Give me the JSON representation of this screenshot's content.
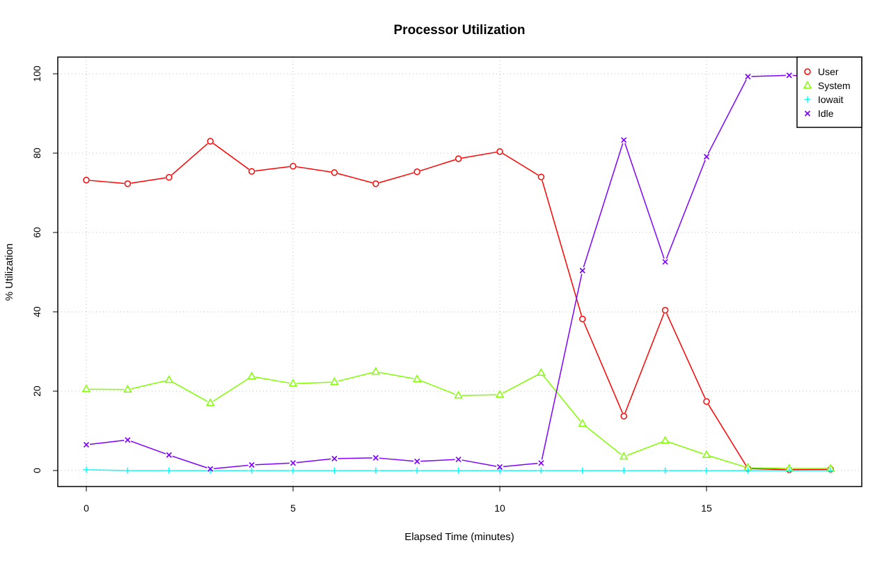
{
  "chart_data": {
    "type": "line",
    "title": "Processor Utilization",
    "xlabel": "Elapsed Time (minutes)",
    "ylabel": "% Utilization",
    "x": [
      0,
      1,
      2,
      3,
      4,
      5,
      6,
      7,
      8,
      9,
      10,
      11,
      12,
      13,
      14,
      15,
      16,
      17,
      18
    ],
    "xlim": [
      -0.7,
      18.7
    ],
    "ylim": [
      -4,
      104
    ],
    "xticks": [
      0,
      5,
      10,
      15
    ],
    "yticks": [
      0,
      20,
      40,
      60,
      80,
      100
    ],
    "grid": true,
    "legend_position": "top-right",
    "series": [
      {
        "name": "User",
        "color": "#ff0000",
        "marker": "circle",
        "values": [
          73.2,
          72.3,
          73.9,
          83.0,
          75.4,
          76.7,
          75.1,
          72.3,
          75.3,
          78.6,
          80.4,
          74.0,
          38.2,
          13.7,
          40.4,
          17.4,
          0.5,
          0.2,
          0.3
        ]
      },
      {
        "name": "System",
        "color": "#80ff00",
        "marker": "triangle",
        "values": [
          20.5,
          20.4,
          22.8,
          17.0,
          23.7,
          21.9,
          22.3,
          24.9,
          23.0,
          18.9,
          19.1,
          24.6,
          11.8,
          3.5,
          7.5,
          3.9,
          0.7,
          0.5,
          0.5
        ]
      },
      {
        "name": "Iowait",
        "color": "#00ffff",
        "marker": "plus",
        "values": [
          0.2,
          0.0,
          0.0,
          0.0,
          0.0,
          0.0,
          0.0,
          0.0,
          0.0,
          0.0,
          0.0,
          0.0,
          0.0,
          0.0,
          0.0,
          0.0,
          0.0,
          0.0,
          0.0
        ]
      },
      {
        "name": "Idle",
        "color": "#8000ff",
        "marker": "cross",
        "values": [
          6.5,
          7.7,
          3.9,
          0.4,
          1.4,
          1.9,
          3.0,
          3.2,
          2.3,
          2.8,
          0.9,
          1.9,
          50.4,
          83.3,
          52.6,
          79.1,
          99.3,
          99.6,
          99.3
        ]
      }
    ]
  }
}
